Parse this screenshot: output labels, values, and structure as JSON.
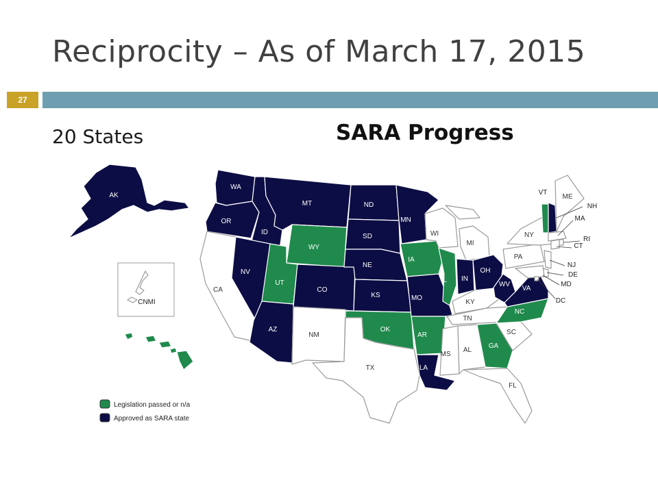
{
  "slide": {
    "title": "Reciprocity – As of March 17, 2015",
    "number": "27",
    "subtitle": "20 States"
  },
  "map": {
    "title": "SARA Progress",
    "colors": {
      "approved": "#0d0d45",
      "legislation": "#1f8a4c",
      "none": "#ffffff"
    },
    "legend": [
      {
        "status": "legislation",
        "label": "Legislation passed or n/a",
        "color": "#1f8a4c"
      },
      {
        "status": "approved",
        "label": "Approved as SARA state",
        "color": "#0d0d45"
      }
    ],
    "states": [
      {
        "code": "AK",
        "status": "approved"
      },
      {
        "code": "HI",
        "status": "legislation"
      },
      {
        "code": "CNMI",
        "status": "none"
      },
      {
        "code": "WA",
        "status": "approved"
      },
      {
        "code": "OR",
        "status": "approved"
      },
      {
        "code": "CA",
        "status": "none"
      },
      {
        "code": "ID",
        "status": "approved"
      },
      {
        "code": "NV",
        "status": "approved"
      },
      {
        "code": "MT",
        "status": "approved"
      },
      {
        "code": "WY",
        "status": "legislation"
      },
      {
        "code": "UT",
        "status": "legislation"
      },
      {
        "code": "AZ",
        "status": "approved"
      },
      {
        "code": "CO",
        "status": "approved"
      },
      {
        "code": "NM",
        "status": "none"
      },
      {
        "code": "ND",
        "status": "approved"
      },
      {
        "code": "SD",
        "status": "approved"
      },
      {
        "code": "NE",
        "status": "approved"
      },
      {
        "code": "KS",
        "status": "approved"
      },
      {
        "code": "OK",
        "status": "legislation"
      },
      {
        "code": "TX",
        "status": "none"
      },
      {
        "code": "MN",
        "status": "approved"
      },
      {
        "code": "IA",
        "status": "legislation"
      },
      {
        "code": "MO",
        "status": "approved"
      },
      {
        "code": "AR",
        "status": "legislation"
      },
      {
        "code": "LA",
        "status": "approved"
      },
      {
        "code": "WI",
        "status": "none"
      },
      {
        "code": "IL",
        "status": "legislation"
      },
      {
        "code": "MS",
        "status": "none"
      },
      {
        "code": "MI",
        "status": "none"
      },
      {
        "code": "IN",
        "status": "approved"
      },
      {
        "code": "KY",
        "status": "none"
      },
      {
        "code": "TN",
        "status": "none"
      },
      {
        "code": "AL",
        "status": "none"
      },
      {
        "code": "OH",
        "status": "approved"
      },
      {
        "code": "WV",
        "status": "approved"
      },
      {
        "code": "GA",
        "status": "legislation"
      },
      {
        "code": "FL",
        "status": "none"
      },
      {
        "code": "SC",
        "status": "none"
      },
      {
        "code": "NC",
        "status": "legislation"
      },
      {
        "code": "VA",
        "status": "approved"
      },
      {
        "code": "PA",
        "status": "none"
      },
      {
        "code": "NY",
        "status": "none"
      },
      {
        "code": "VT",
        "status": "legislation"
      },
      {
        "code": "NH",
        "status": "approved"
      },
      {
        "code": "ME",
        "status": "none"
      },
      {
        "code": "MA",
        "status": "none"
      },
      {
        "code": "RI",
        "status": "none"
      },
      {
        "code": "CT",
        "status": "none"
      },
      {
        "code": "NJ",
        "status": "none"
      },
      {
        "code": "DE",
        "status": "none"
      },
      {
        "code": "MD",
        "status": "none"
      },
      {
        "code": "DC",
        "status": "none"
      }
    ]
  }
}
